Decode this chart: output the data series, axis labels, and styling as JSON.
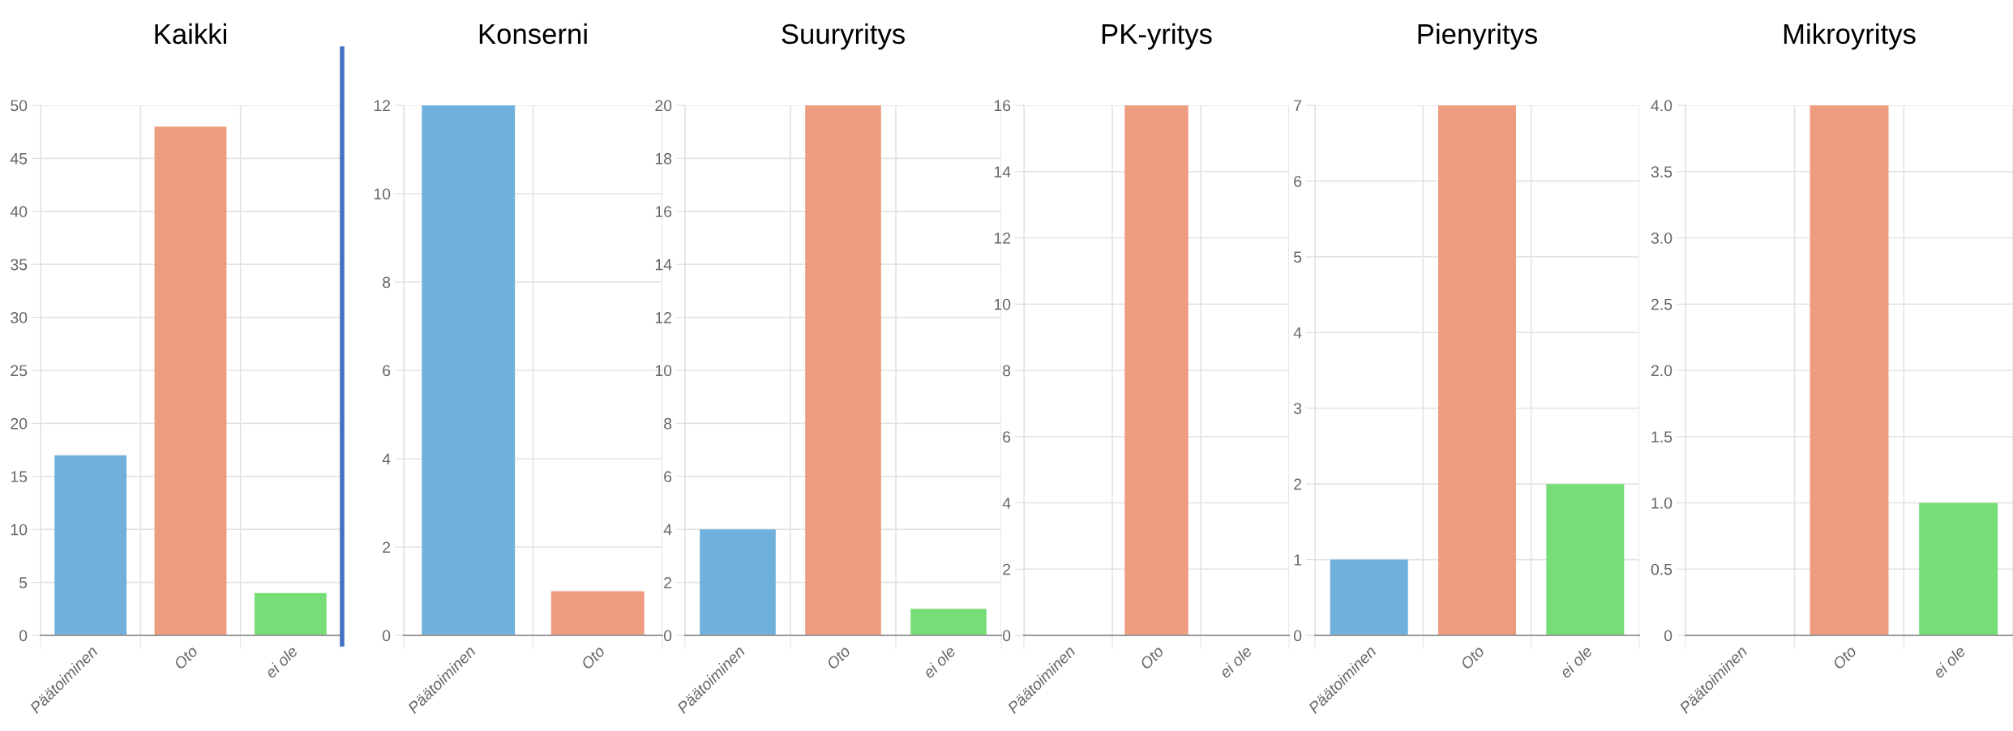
{
  "chart_data": [
    {
      "type": "bar",
      "title": "Kaikki",
      "categories": [
        "Päätoiminen",
        "Oto",
        "ei ole"
      ],
      "values": [
        17,
        48,
        4
      ],
      "colors": [
        "#6fb1dc",
        "#ee9c80",
        "#77dd77"
      ],
      "ylim": [
        0,
        50
      ],
      "yticks": [
        0,
        5,
        10,
        15,
        20,
        25,
        30,
        35,
        40,
        45,
        50
      ],
      "grid": true
    },
    {
      "type": "bar",
      "title": "Konserni",
      "categories": [
        "Päätoiminen",
        "Oto"
      ],
      "values": [
        12,
        1
      ],
      "colors": [
        "#6fb1dc",
        "#ee9c80"
      ],
      "ylim": [
        0,
        12
      ],
      "yticks": [
        0,
        2,
        4,
        6,
        8,
        10,
        12
      ],
      "grid": true
    },
    {
      "type": "bar",
      "title": "Suuryritys",
      "categories": [
        "Päätoiminen",
        "Oto",
        "ei ole"
      ],
      "values": [
        4,
        20,
        1
      ],
      "colors": [
        "#6fb1dc",
        "#ee9c80",
        "#77dd77"
      ],
      "ylim": [
        0,
        20
      ],
      "yticks": [
        0,
        2,
        4,
        6,
        8,
        10,
        12,
        14,
        16,
        18,
        20
      ],
      "grid": true
    },
    {
      "type": "bar",
      "title": "PK-yritys",
      "categories": [
        "Päätoiminen",
        "Oto",
        "ei ole"
      ],
      "values": [
        0,
        16,
        0
      ],
      "colors": [
        "#6fb1dc",
        "#ee9c80",
        "#77dd77"
      ],
      "ylim": [
        0,
        16
      ],
      "yticks": [
        0,
        2,
        4,
        6,
        8,
        10,
        12,
        14,
        16
      ],
      "grid": true
    },
    {
      "type": "bar",
      "title": "Pienyritys",
      "categories": [
        "Päätoiminen",
        "Oto",
        "ei ole"
      ],
      "values": [
        1,
        7,
        2
      ],
      "colors": [
        "#6fb1dc",
        "#ee9c80",
        "#77dd77"
      ],
      "ylim": [
        0,
        7
      ],
      "yticks": [
        0,
        1,
        2,
        3,
        4,
        5,
        6,
        7
      ],
      "grid": true
    },
    {
      "type": "bar",
      "title": "Mikroyritys",
      "categories": [
        "Päätoiminen",
        "Oto",
        "ei ole"
      ],
      "values": [
        0,
        4,
        1
      ],
      "colors": [
        "#6fb1dc",
        "#ee9c80",
        "#77dd77"
      ],
      "ylim": [
        0,
        4
      ],
      "yticks": [
        0,
        {
          "value": 0.5,
          "label": "0.5"
        },
        {
          "value": 1,
          "label": "1.0"
        },
        {
          "value": 1.5,
          "label": "1.5"
        },
        {
          "value": 2,
          "label": "2.0"
        },
        {
          "value": 2.5,
          "label": "2.5"
        },
        {
          "value": 3,
          "label": "3.0"
        },
        {
          "value": 3.5,
          "label": "3.5"
        },
        {
          "value": 4,
          "label": "4.0"
        }
      ],
      "grid": true
    }
  ]
}
